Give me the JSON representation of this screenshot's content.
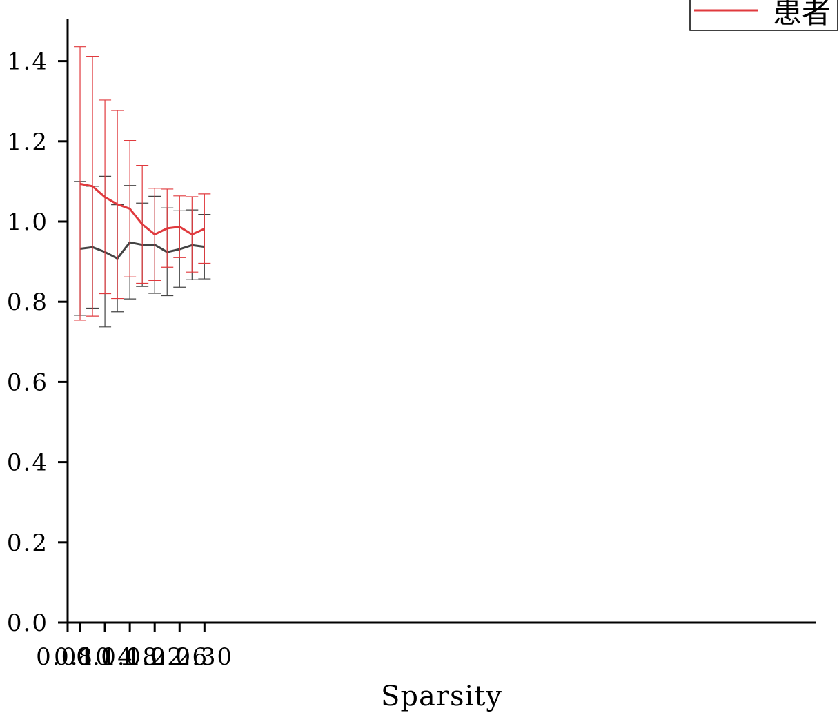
{
  "chart_data": {
    "type": "line",
    "title": "",
    "xlabel": "Sparsity",
    "ylabel": "",
    "xlim": [
      0.08,
      0.32
    ],
    "ylim": [
      0,
      1.5
    ],
    "xticks": [
      0.08,
      0.1,
      0.14,
      0.18,
      0.22,
      0.26,
      0.3
    ],
    "xtick_labels": [
      "0.08",
      "0.10",
      "0.14",
      "0.18",
      "0.22",
      "0.26",
      "0.30"
    ],
    "yticks": [
      0.0,
      0.2,
      0.4,
      0.6,
      0.8,
      1.0,
      1.2,
      1.4
    ],
    "ytick_labels": [
      "0.0",
      "0.2",
      "0.4",
      "0.6",
      "0.8",
      "1.0",
      "1.2",
      "1.4"
    ],
    "grid": false,
    "legend_position": "top-right",
    "x": [
      0.1,
      0.12,
      0.14,
      0.16,
      0.18,
      0.2,
      0.22,
      0.24,
      0.26,
      0.28,
      0.3
    ],
    "series": [
      {
        "name": "",
        "color": "#444444",
        "values": [
          0.932,
          0.936,
          0.924,
          0.908,
          0.948,
          0.942,
          0.942,
          0.924,
          0.931,
          0.941,
          0.937
        ],
        "err_low": [
          0.766,
          0.784,
          0.737,
          0.775,
          0.807,
          0.838,
          0.821,
          0.815,
          0.836,
          0.855,
          0.857
        ],
        "err_high": [
          1.1,
          1.088,
          1.113,
          1.042,
          1.09,
          1.046,
          1.063,
          1.034,
          1.027,
          1.029,
          1.018
        ]
      },
      {
        "name": "患者",
        "color": "#e03a3e",
        "values": [
          1.094,
          1.088,
          1.061,
          1.043,
          1.032,
          0.993,
          0.968,
          0.983,
          0.987,
          0.968,
          0.982
        ],
        "err_low": [
          0.754,
          0.764,
          0.82,
          0.808,
          0.862,
          0.846,
          0.853,
          0.886,
          0.91,
          0.874,
          0.896
        ],
        "err_high": [
          1.436,
          1.412,
          1.303,
          1.277,
          1.202,
          1.14,
          1.083,
          1.081,
          1.064,
          1.062,
          1.069
        ]
      }
    ]
  }
}
